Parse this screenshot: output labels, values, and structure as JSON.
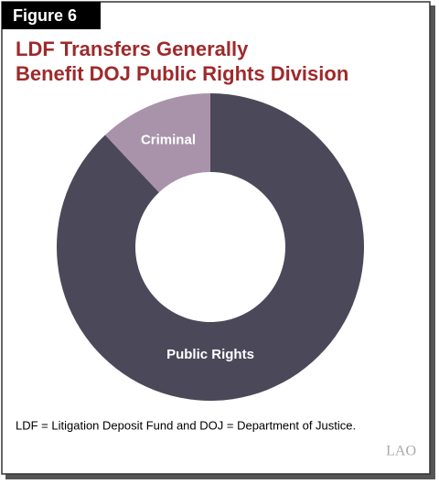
{
  "figure_label": "Figure 6",
  "chart_data": {
    "type": "donut",
    "title": [
      "LDF Transfers Generally",
      "Benefit DOJ Public Rights Division"
    ],
    "categories": [
      "Public Rights",
      "Criminal"
    ],
    "values": [
      88,
      12
    ],
    "colors": [
      "#4a4859",
      "#a993ab"
    ]
  },
  "footnote": "LDF = Litigation Deposit Fund and DOJ = Department of Justice.",
  "logo": "LAO"
}
